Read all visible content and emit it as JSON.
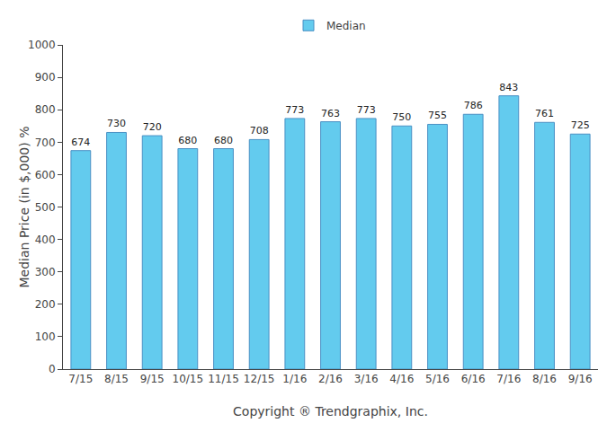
{
  "chart_data": {
    "type": "bar",
    "xlabel": "Copyright ® Trendgraphix, Inc.",
    "ylabel": "Median Price (in $,000) %",
    "categories": [
      "7/15",
      "8/15",
      "9/15",
      "10/15",
      "11/15",
      "12/15",
      "1/16",
      "2/16",
      "3/16",
      "4/16",
      "5/16",
      "6/16",
      "7/16",
      "8/16",
      "9/16"
    ],
    "series": [
      {
        "name": "Median",
        "color": "#63CBEE",
        "values": [
          674,
          730,
          720,
          680,
          680,
          708,
          773,
          763,
          773,
          750,
          755,
          786,
          843,
          761,
          725
        ]
      }
    ],
    "ylim": [
      0,
      1000
    ],
    "yticks": [
      0,
      100,
      200,
      300,
      400,
      500,
      600,
      700,
      800,
      900,
      1000
    ],
    "grid": false,
    "legend": "top",
    "data_labels": true
  }
}
